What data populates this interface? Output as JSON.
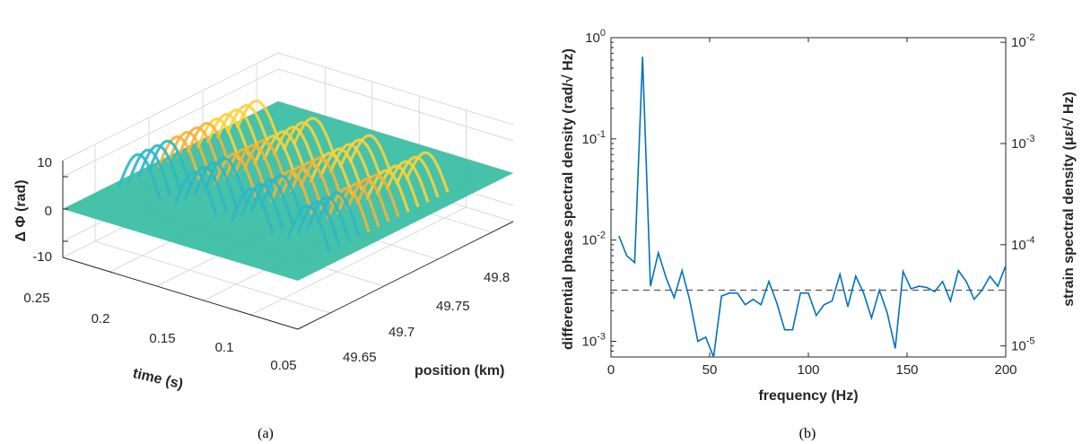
{
  "chart_data": [
    {
      "type": "surface",
      "caption": "(a)",
      "zlabel": "Δ Φ (rad)",
      "xlabel": "time (s)",
      "ylabel": "position (km)",
      "z_ticks": [
        "10",
        "0",
        "-10"
      ],
      "time_ticks": [
        "0.25",
        "0.2",
        "0.15",
        "0.1",
        "0.05"
      ],
      "position_ticks": [
        "49.65",
        "49.7",
        "49.75",
        "49.8"
      ],
      "zlim": [
        -15,
        15
      ],
      "time_range": [
        0,
        0.25
      ],
      "position_range": [
        49.62,
        49.82
      ],
      "peaks": [
        {
          "time": 0.22,
          "peak": 12
        },
        {
          "time": 0.16,
          "peak": 12
        },
        {
          "time": 0.1,
          "peak": 12
        },
        {
          "time": 0.04,
          "peak": 12
        }
      ],
      "colormap": [
        "#3bbfa4",
        "#2fb7c4",
        "#f5b335",
        "#fcd23a"
      ]
    },
    {
      "type": "line",
      "caption": "(b)",
      "xlabel": "frequency (Hz)",
      "ylabel": "differential phase spectral density (rad/√ Hz)",
      "ylabel_right": "strain spectral density (με/√ Hz)",
      "xlim": [
        0,
        200
      ],
      "ylim": [
        0.0007,
        1
      ],
      "yscale": "log",
      "x_ticks": [
        "0",
        "50",
        "100",
        "150",
        "200"
      ],
      "y_ticks_left": [
        {
          "base": "10",
          "exp": "0"
        },
        {
          "base": "10",
          "exp": "-1"
        },
        {
          "base": "10",
          "exp": "-2"
        },
        {
          "base": "10",
          "exp": "-3"
        }
      ],
      "y_ticks_right": [
        {
          "base": "10",
          "exp": "-2"
        },
        {
          "base": "10",
          "exp": "-3"
        },
        {
          "base": "10",
          "exp": "-4"
        },
        {
          "base": "10",
          "exp": "-5"
        }
      ],
      "series": [
        {
          "color": "#0072bd",
          "x": [
            4,
            8,
            12,
            16,
            20,
            24,
            28,
            32,
            36,
            40,
            44,
            48,
            52,
            56,
            60,
            64,
            68,
            72,
            76,
            80,
            84,
            88,
            92,
            96,
            100,
            104,
            108,
            112,
            116,
            120,
            124,
            128,
            132,
            136,
            140,
            144,
            148,
            152,
            156,
            160,
            164,
            168,
            172,
            176,
            180,
            184,
            188,
            192,
            196,
            200
          ],
          "y": [
            0.011,
            0.007,
            0.006,
            0.65,
            0.0035,
            0.0075,
            0.0042,
            0.0027,
            0.005,
            0.0025,
            0.001,
            0.0011,
            0.00065,
            0.0028,
            0.003,
            0.003,
            0.0023,
            0.0026,
            0.0023,
            0.0039,
            0.0024,
            0.0013,
            0.0013,
            0.003,
            0.003,
            0.0018,
            0.0023,
            0.0025,
            0.0046,
            0.0022,
            0.0044,
            0.003,
            0.0017,
            0.0032,
            0.0019,
            0.00085,
            0.0049,
            0.0033,
            0.0035,
            0.0034,
            0.0031,
            0.0039,
            0.0025,
            0.005,
            0.0039,
            0.0026,
            0.0032,
            0.0044,
            0.0035,
            0.0056
          ]
        }
      ],
      "reference_line": {
        "y": 0.0032,
        "style": "dashed",
        "color": "#555555"
      }
    }
  ]
}
